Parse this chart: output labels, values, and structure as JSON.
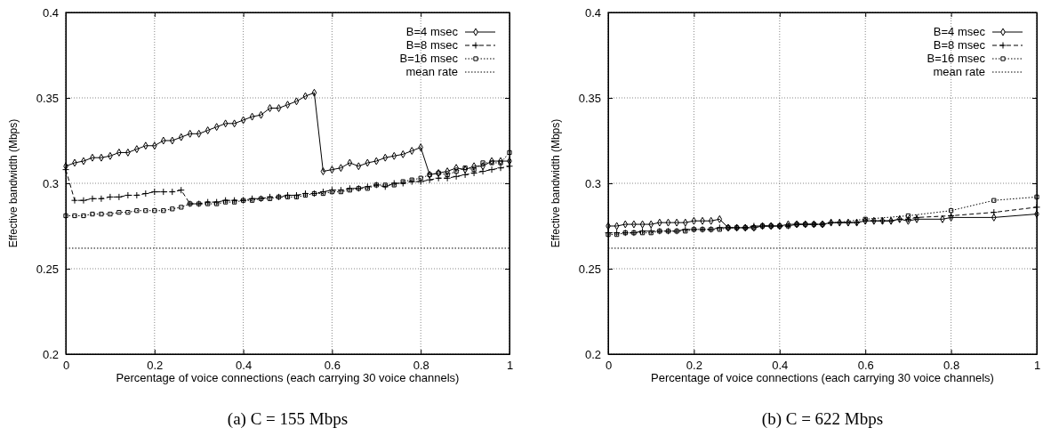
{
  "chart_data": [
    {
      "type": "line",
      "title": "(a) C = 155 Mbps",
      "xlabel": "Percentage of voice connections (each carrying 30 voice channels)",
      "ylabel": "Effective bandwidth (Mbps)",
      "xlim": [
        0,
        1
      ],
      "ylim": [
        0.2,
        0.4
      ],
      "xticks": [
        0,
        0.2,
        0.4,
        0.6,
        0.8,
        1
      ],
      "yticks": [
        0.2,
        0.25,
        0.3,
        0.35,
        0.4
      ],
      "grid": true,
      "legend": "top right",
      "series": [
        {
          "name": "B=4 msec",
          "color": "#000000",
          "marker": "diamond",
          "line_style": "solid",
          "x": [
            0,
            0.02,
            0.04,
            0.06,
            0.08,
            0.1,
            0.12,
            0.14,
            0.16,
            0.18,
            0.2,
            0.22,
            0.24,
            0.26,
            0.28,
            0.3,
            0.32,
            0.34,
            0.36,
            0.38,
            0.4,
            0.42,
            0.44,
            0.46,
            0.48,
            0.5,
            0.52,
            0.54,
            0.56,
            0.58,
            0.6,
            0.62,
            0.64,
            0.66,
            0.68,
            0.7,
            0.72,
            0.74,
            0.76,
            0.78,
            0.8,
            0.82,
            0.84,
            0.86,
            0.88,
            0.9,
            0.92,
            0.94,
            0.96,
            0.98,
            1
          ],
          "values": [
            0.31,
            0.312,
            0.313,
            0.315,
            0.315,
            0.316,
            0.318,
            0.318,
            0.32,
            0.322,
            0.322,
            0.325,
            0.325,
            0.327,
            0.329,
            0.329,
            0.331,
            0.333,
            0.335,
            0.335,
            0.337,
            0.339,
            0.34,
            0.344,
            0.344,
            0.346,
            0.348,
            0.351,
            0.353,
            0.307,
            0.308,
            0.309,
            0.312,
            0.31,
            0.312,
            0.313,
            0.315,
            0.316,
            0.317,
            0.319,
            0.321,
            0.305,
            0.306,
            0.307,
            0.309,
            0.308,
            0.31,
            0.31,
            0.313,
            0.313,
            0.313
          ]
        },
        {
          "name": "B=8 msec",
          "color": "#000000",
          "marker": "cross",
          "line_style": "dashed",
          "x": [
            0,
            0.02,
            0.04,
            0.06,
            0.08,
            0.1,
            0.12,
            0.14,
            0.16,
            0.18,
            0.2,
            0.22,
            0.24,
            0.26,
            0.28,
            0.3,
            0.32,
            0.34,
            0.36,
            0.38,
            0.4,
            0.42,
            0.44,
            0.46,
            0.48,
            0.5,
            0.52,
            0.54,
            0.56,
            0.58,
            0.6,
            0.62,
            0.64,
            0.66,
            0.68,
            0.7,
            0.72,
            0.74,
            0.76,
            0.78,
            0.8,
            0.82,
            0.84,
            0.86,
            0.88,
            0.9,
            0.92,
            0.94,
            0.96,
            0.98,
            1
          ],
          "values": [
            0.308,
            0.29,
            0.29,
            0.291,
            0.291,
            0.292,
            0.292,
            0.293,
            0.293,
            0.294,
            0.295,
            0.295,
            0.295,
            0.296,
            0.288,
            0.288,
            0.289,
            0.289,
            0.29,
            0.29,
            0.29,
            0.291,
            0.291,
            0.292,
            0.292,
            0.293,
            0.293,
            0.294,
            0.294,
            0.295,
            0.296,
            0.296,
            0.297,
            0.297,
            0.298,
            0.299,
            0.298,
            0.3,
            0.3,
            0.301,
            0.301,
            0.302,
            0.303,
            0.303,
            0.304,
            0.305,
            0.306,
            0.307,
            0.308,
            0.309,
            0.31
          ]
        },
        {
          "name": "B=16 msec",
          "color": "#000000",
          "marker": "square",
          "line_style": "dotted",
          "x": [
            0,
            0.02,
            0.04,
            0.06,
            0.08,
            0.1,
            0.12,
            0.14,
            0.16,
            0.18,
            0.2,
            0.22,
            0.24,
            0.26,
            0.28,
            0.3,
            0.32,
            0.34,
            0.36,
            0.38,
            0.4,
            0.42,
            0.44,
            0.46,
            0.48,
            0.5,
            0.52,
            0.54,
            0.56,
            0.58,
            0.6,
            0.62,
            0.64,
            0.66,
            0.68,
            0.7,
            0.72,
            0.74,
            0.76,
            0.78,
            0.8,
            0.82,
            0.84,
            0.86,
            0.88,
            0.9,
            0.92,
            0.94,
            0.96,
            0.98,
            1
          ],
          "values": [
            0.281,
            0.281,
            0.281,
            0.282,
            0.282,
            0.282,
            0.283,
            0.283,
            0.284,
            0.284,
            0.284,
            0.284,
            0.285,
            0.286,
            0.288,
            0.288,
            0.288,
            0.288,
            0.289,
            0.289,
            0.29,
            0.29,
            0.291,
            0.291,
            0.292,
            0.292,
            0.292,
            0.293,
            0.294,
            0.294,
            0.295,
            0.295,
            0.296,
            0.297,
            0.297,
            0.299,
            0.299,
            0.299,
            0.301,
            0.302,
            0.303,
            0.305,
            0.306,
            0.305,
            0.307,
            0.309,
            0.308,
            0.312,
            0.312,
            0.312,
            0.318
          ]
        },
        {
          "name": "mean rate",
          "color": "#000000",
          "marker": "none",
          "line_style": "dotted",
          "x": [
            0,
            1
          ],
          "values": [
            0.262,
            0.262
          ]
        }
      ]
    },
    {
      "type": "line",
      "title": "(b) C = 622 Mbps",
      "xlabel": "Percentage of voice connections (each carrying 30 voice channels)",
      "ylabel": "Effective bandwidth (Mbps)",
      "xlim": [
        0,
        1
      ],
      "ylim": [
        0.2,
        0.4
      ],
      "xticks": [
        0,
        0.2,
        0.4,
        0.6,
        0.8,
        1
      ],
      "yticks": [
        0.2,
        0.25,
        0.3,
        0.35,
        0.4
      ],
      "grid": true,
      "legend": "top right",
      "series": [
        {
          "name": "B=4 msec",
          "color": "#000000",
          "marker": "diamond",
          "line_style": "solid",
          "x": [
            0,
            0.02,
            0.04,
            0.06,
            0.08,
            0.1,
            0.12,
            0.14,
            0.16,
            0.18,
            0.2,
            0.22,
            0.24,
            0.26,
            0.28,
            0.3,
            0.32,
            0.34,
            0.36,
            0.38,
            0.4,
            0.42,
            0.44,
            0.46,
            0.48,
            0.5,
            0.52,
            0.54,
            0.56,
            0.58,
            0.6,
            0.62,
            0.64,
            0.66,
            0.68,
            0.7,
            0.72,
            0.78,
            0.8,
            0.9,
            1
          ],
          "values": [
            0.275,
            0.275,
            0.276,
            0.276,
            0.276,
            0.276,
            0.277,
            0.277,
            0.277,
            0.277,
            0.278,
            0.278,
            0.278,
            0.279,
            0.274,
            0.274,
            0.274,
            0.274,
            0.275,
            0.275,
            0.275,
            0.276,
            0.276,
            0.276,
            0.276,
            0.276,
            0.277,
            0.277,
            0.277,
            0.277,
            0.278,
            0.278,
            0.278,
            0.278,
            0.279,
            0.278,
            0.279,
            0.279,
            0.28,
            0.28,
            0.282
          ]
        },
        {
          "name": "B=8 msec",
          "color": "#000000",
          "marker": "cross",
          "line_style": "dashed",
          "x": [
            0,
            0.02,
            0.04,
            0.06,
            0.08,
            0.1,
            0.12,
            0.14,
            0.16,
            0.18,
            0.2,
            0.22,
            0.24,
            0.26,
            0.28,
            0.3,
            0.32,
            0.34,
            0.36,
            0.38,
            0.4,
            0.42,
            0.44,
            0.46,
            0.48,
            0.5,
            0.52,
            0.54,
            0.56,
            0.58,
            0.6,
            0.62,
            0.64,
            0.66,
            0.68,
            0.7,
            0.72,
            0.8,
            0.9,
            1
          ],
          "values": [
            0.271,
            0.271,
            0.271,
            0.271,
            0.272,
            0.272,
            0.272,
            0.272,
            0.272,
            0.273,
            0.273,
            0.273,
            0.273,
            0.274,
            0.274,
            0.274,
            0.274,
            0.275,
            0.275,
            0.275,
            0.275,
            0.275,
            0.276,
            0.276,
            0.276,
            0.276,
            0.277,
            0.277,
            0.277,
            0.277,
            0.278,
            0.278,
            0.278,
            0.278,
            0.279,
            0.279,
            0.28,
            0.281,
            0.283,
            0.286
          ]
        },
        {
          "name": "B=16 msec",
          "color": "#000000",
          "marker": "square",
          "line_style": "dotted",
          "x": [
            0,
            0.02,
            0.04,
            0.06,
            0.08,
            0.1,
            0.12,
            0.14,
            0.16,
            0.18,
            0.2,
            0.22,
            0.24,
            0.26,
            0.28,
            0.3,
            0.32,
            0.34,
            0.36,
            0.38,
            0.4,
            0.42,
            0.44,
            0.46,
            0.48,
            0.5,
            0.6,
            0.7,
            0.8,
            0.9,
            1
          ],
          "values": [
            0.27,
            0.27,
            0.271,
            0.271,
            0.271,
            0.271,
            0.272,
            0.272,
            0.272,
            0.272,
            0.273,
            0.273,
            0.273,
            0.273,
            0.274,
            0.274,
            0.274,
            0.274,
            0.275,
            0.275,
            0.275,
            0.275,
            0.276,
            0.276,
            0.276,
            0.276,
            0.279,
            0.281,
            0.284,
            0.29,
            0.292
          ]
        },
        {
          "name": "mean rate",
          "color": "#000000",
          "marker": "none",
          "line_style": "dotted",
          "x": [
            0,
            1
          ],
          "values": [
            0.262,
            0.262
          ]
        }
      ]
    }
  ]
}
